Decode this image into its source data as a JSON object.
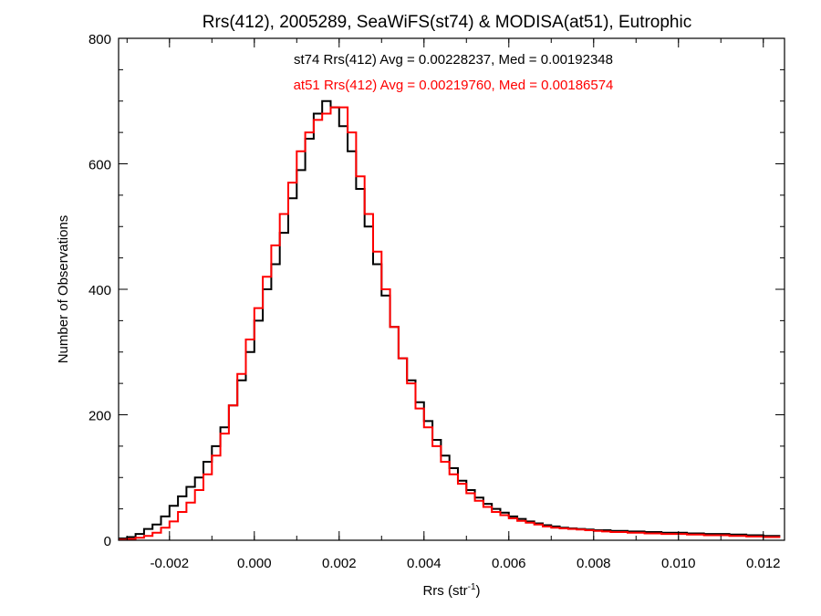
{
  "chart_data": {
    "type": "line",
    "step": true,
    "title": "Rrs(412), 2005289, SeaWiFS(st74) & MODISA(at51), Eutrophic",
    "xlabel": "Rrs (str",
    "xlabel_sup": "-1",
    "xlabel_close": ")",
    "ylabel": "Number of Observations",
    "xlim": [
      -0.0032,
      0.0125
    ],
    "ylim": [
      0,
      800
    ],
    "xticks": [
      -0.002,
      0.0,
      0.002,
      0.004,
      0.006,
      0.008,
      0.01,
      0.012
    ],
    "xtick_labels": [
      "-0.002",
      "0.000",
      "0.002",
      "0.004",
      "0.006",
      "0.008",
      "0.010",
      "0.012"
    ],
    "yticks": [
      0,
      200,
      400,
      600,
      800
    ],
    "ytick_labels": [
      "0",
      "200",
      "400",
      "600",
      "800"
    ],
    "grid": false,
    "annotations": [
      {
        "text": "st74 Rrs(412) Avg = 0.00228237, Med = 0.00192348",
        "color": "#000000"
      },
      {
        "text": "at51 Rrs(412) Avg = 0.00219760, Med = 0.00186574",
        "color": "#ff0000"
      }
    ],
    "series": [
      {
        "color": "#000000",
        "x": [
          -0.0032,
          -0.003,
          -0.0028,
          -0.0026,
          -0.0024,
          -0.0022,
          -0.002,
          -0.0018,
          -0.0016,
          -0.0014,
          -0.0012,
          -0.001,
          -0.0008,
          -0.0006,
          -0.0004,
          -0.0002,
          0.0,
          0.0002,
          0.0004,
          0.0006,
          0.0008,
          0.001,
          0.0012,
          0.0014,
          0.0016,
          0.0018,
          0.002,
          0.0022,
          0.0024,
          0.0026,
          0.0028,
          0.003,
          0.0032,
          0.0034,
          0.0036,
          0.0038,
          0.004,
          0.0042,
          0.0044,
          0.0046,
          0.0048,
          0.005,
          0.0052,
          0.0054,
          0.0056,
          0.0058,
          0.006,
          0.0062,
          0.0064,
          0.0066,
          0.0068,
          0.007,
          0.0072,
          0.0074,
          0.0076,
          0.0078,
          0.008,
          0.0082,
          0.0084,
          0.0086,
          0.0088,
          0.009,
          0.0092,
          0.0094,
          0.0096,
          0.0098,
          0.01,
          0.0102,
          0.0104,
          0.0106,
          0.0108,
          0.011,
          0.0112,
          0.0114,
          0.0116,
          0.0118,
          0.012,
          0.0122
        ],
        "values": [
          3,
          5,
          10,
          18,
          25,
          38,
          55,
          70,
          85,
          100,
          125,
          150,
          180,
          215,
          255,
          300,
          350,
          400,
          440,
          490,
          545,
          590,
          640,
          680,
          700,
          690,
          660,
          620,
          560,
          500,
          440,
          390,
          340,
          290,
          255,
          220,
          190,
          160,
          135,
          115,
          95,
          80,
          68,
          58,
          50,
          44,
          38,
          34,
          30,
          27,
          24,
          22,
          20,
          19,
          18,
          17,
          16,
          16,
          15,
          15,
          14,
          14,
          13,
          13,
          12,
          12,
          12,
          11,
          11,
          10,
          10,
          10,
          9,
          9,
          8,
          8,
          7,
          7
        ]
      },
      {
        "color": "#ff0000",
        "x": [
          -0.0032,
          -0.003,
          -0.0028,
          -0.0026,
          -0.0024,
          -0.0022,
          -0.002,
          -0.0018,
          -0.0016,
          -0.0014,
          -0.0012,
          -0.001,
          -0.0008,
          -0.0006,
          -0.0004,
          -0.0002,
          0.0,
          0.0002,
          0.0004,
          0.0006,
          0.0008,
          0.001,
          0.0012,
          0.0014,
          0.0016,
          0.0018,
          0.002,
          0.0022,
          0.0024,
          0.0026,
          0.0028,
          0.003,
          0.0032,
          0.0034,
          0.0036,
          0.0038,
          0.004,
          0.0042,
          0.0044,
          0.0046,
          0.0048,
          0.005,
          0.0052,
          0.0054,
          0.0056,
          0.0058,
          0.006,
          0.0062,
          0.0064,
          0.0066,
          0.0068,
          0.007,
          0.0072,
          0.0074,
          0.0076,
          0.0078,
          0.008,
          0.0082,
          0.0084,
          0.0086,
          0.0088,
          0.009,
          0.0092,
          0.0094,
          0.0096,
          0.0098,
          0.01,
          0.0102,
          0.0104,
          0.0106,
          0.0108,
          0.011,
          0.0112,
          0.0114,
          0.0116,
          0.0118,
          0.012,
          0.0122
        ],
        "values": [
          1,
          2,
          4,
          7,
          12,
          20,
          30,
          45,
          60,
          80,
          105,
          135,
          170,
          215,
          265,
          320,
          370,
          420,
          470,
          520,
          570,
          620,
          650,
          670,
          680,
          690,
          690,
          650,
          580,
          520,
          460,
          400,
          340,
          290,
          250,
          210,
          180,
          150,
          125,
          105,
          90,
          75,
          63,
          53,
          45,
          40,
          35,
          31,
          28,
          25,
          22,
          20,
          19,
          18,
          17,
          16,
          15,
          14,
          13,
          13,
          12,
          12,
          11,
          11,
          10,
          10,
          10,
          9,
          9,
          8,
          8,
          8,
          7,
          7,
          6,
          6,
          5,
          5
        ]
      }
    ]
  }
}
